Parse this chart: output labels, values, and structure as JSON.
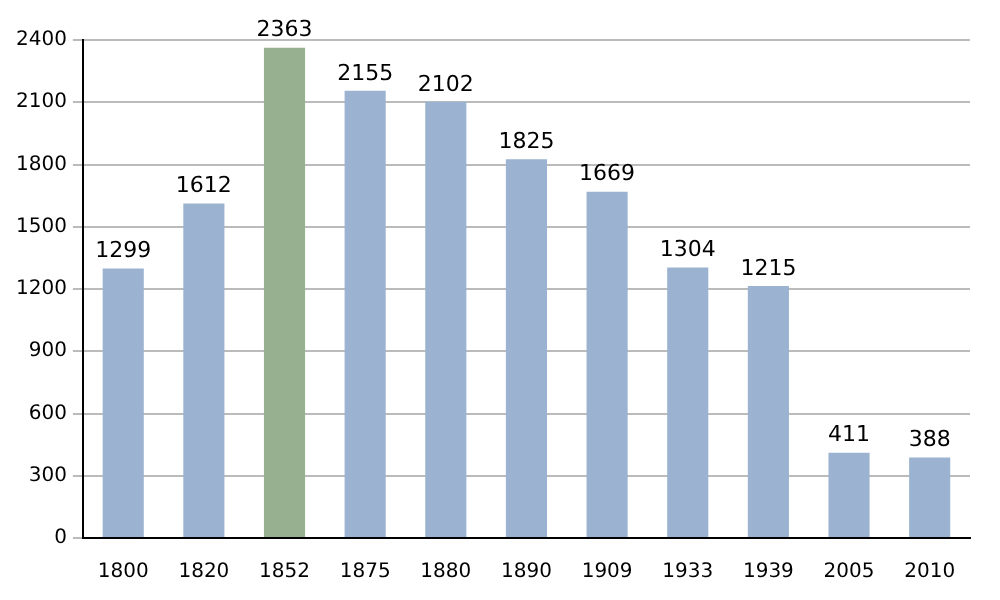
{
  "chart_data": {
    "type": "bar",
    "categories": [
      "1800",
      "1820",
      "1852",
      "1875",
      "1880",
      "1890",
      "1909",
      "1933",
      "1939",
      "2005",
      "2010"
    ],
    "values": [
      1299,
      1612,
      2363,
      2155,
      2102,
      1825,
      1669,
      1304,
      1215,
      411,
      388
    ],
    "colors": [
      "#9bb3d0",
      "#9bb3d0",
      "#97b08f",
      "#9bb3d0",
      "#9bb3d0",
      "#9bb3d0",
      "#9bb3d0",
      "#9bb3d0",
      "#9bb3d0",
      "#9bb3d0",
      "#9bb3d0"
    ],
    "ylim": [
      0,
      2400
    ],
    "yticks": [
      0,
      300,
      600,
      900,
      1200,
      1500,
      1800,
      2100,
      2400
    ],
    "grid": "y",
    "data_labels": true
  }
}
